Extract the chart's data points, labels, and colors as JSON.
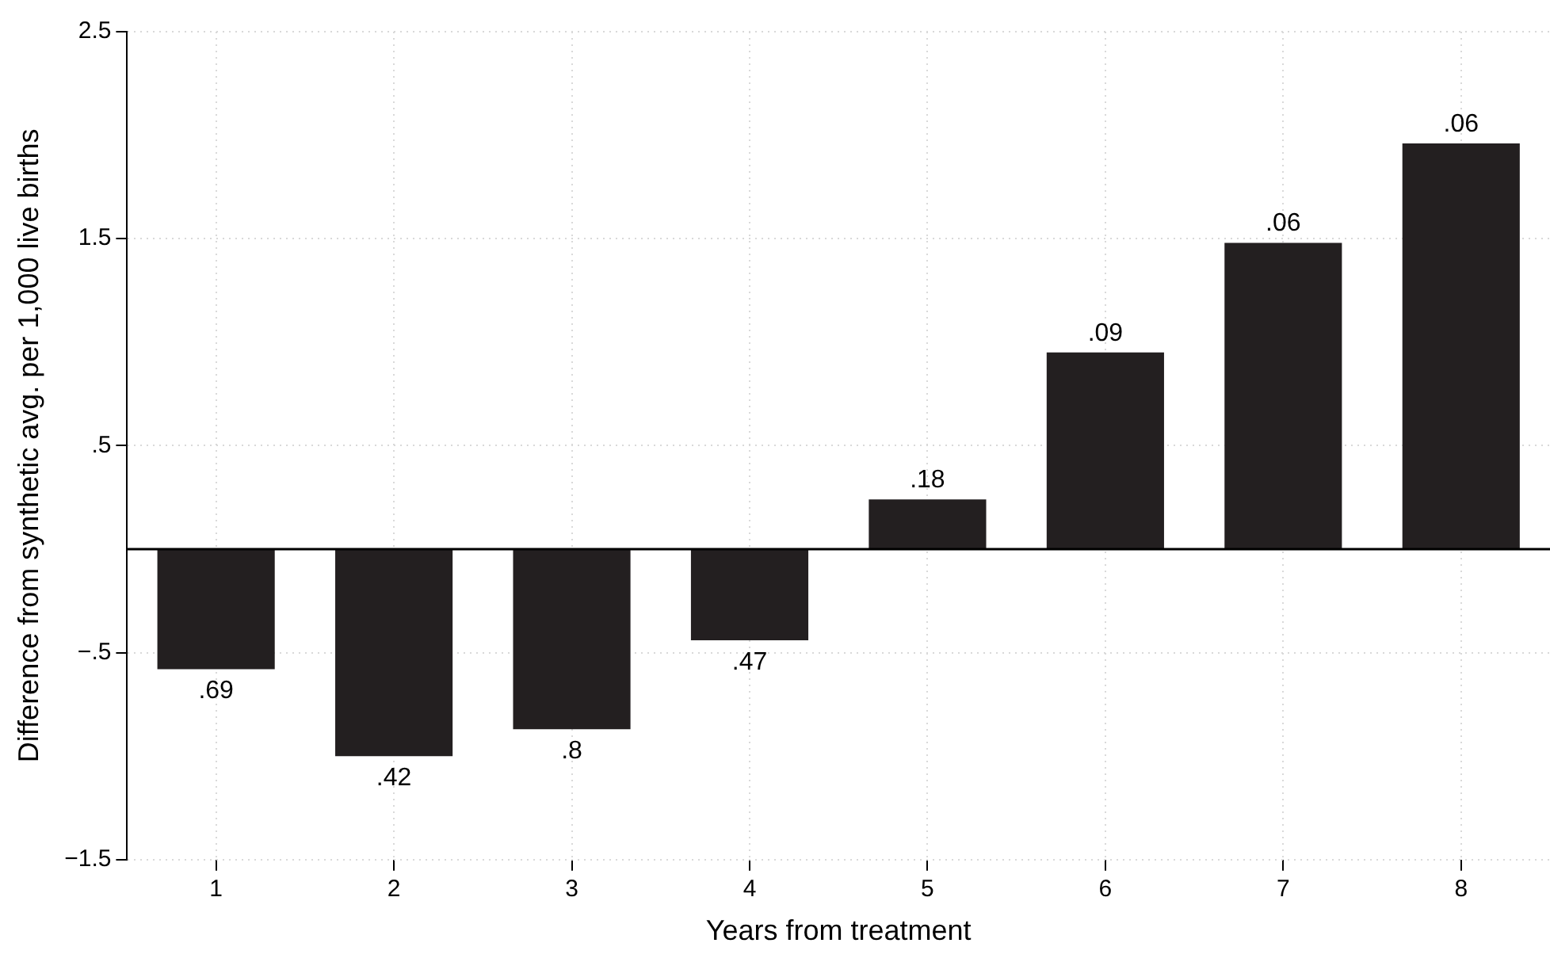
{
  "chart_data": {
    "type": "bar",
    "xlabel": "Years from treatment",
    "ylabel": "Difference from synthetic avg. per 1,000 live births",
    "categories": [
      "1",
      "2",
      "3",
      "4",
      "5",
      "6",
      "7",
      "8"
    ],
    "values": [
      -0.58,
      -1.0,
      -0.87,
      -0.44,
      0.24,
      0.95,
      1.48,
      1.96
    ],
    "annotations": [
      {
        "text": ".69",
        "x": "1",
        "y": -0.58
      },
      {
        "text": ".42",
        "x": "2",
        "y": -1.0
      },
      {
        "text": ".8",
        "x": "3",
        "y": -0.87
      },
      {
        "text": ".47",
        "x": "4",
        "y": -0.44
      },
      {
        "text": ".18",
        "x": "5",
        "y": 0.24
      },
      {
        "text": ".09",
        "x": "6",
        "y": 0.95
      },
      {
        "text": ".06",
        "x": "7",
        "y": 1.48
      },
      {
        "text": ".06",
        "x": "8",
        "y": 1.96
      }
    ],
    "color": "#231f20",
    "ylim": [
      -1.5,
      2.5
    ],
    "yticks": [
      {
        "value": -1.5,
        "label": "−1.5"
      },
      {
        "value": -0.5,
        "label": "−.5"
      },
      {
        "value": 0.5,
        "label": ".5"
      },
      1.5,
      2.5
    ],
    "ref_lines": [
      {
        "axis": "y",
        "value": 0,
        "color": "#000000"
      }
    ],
    "grid": true,
    "legend": false
  }
}
